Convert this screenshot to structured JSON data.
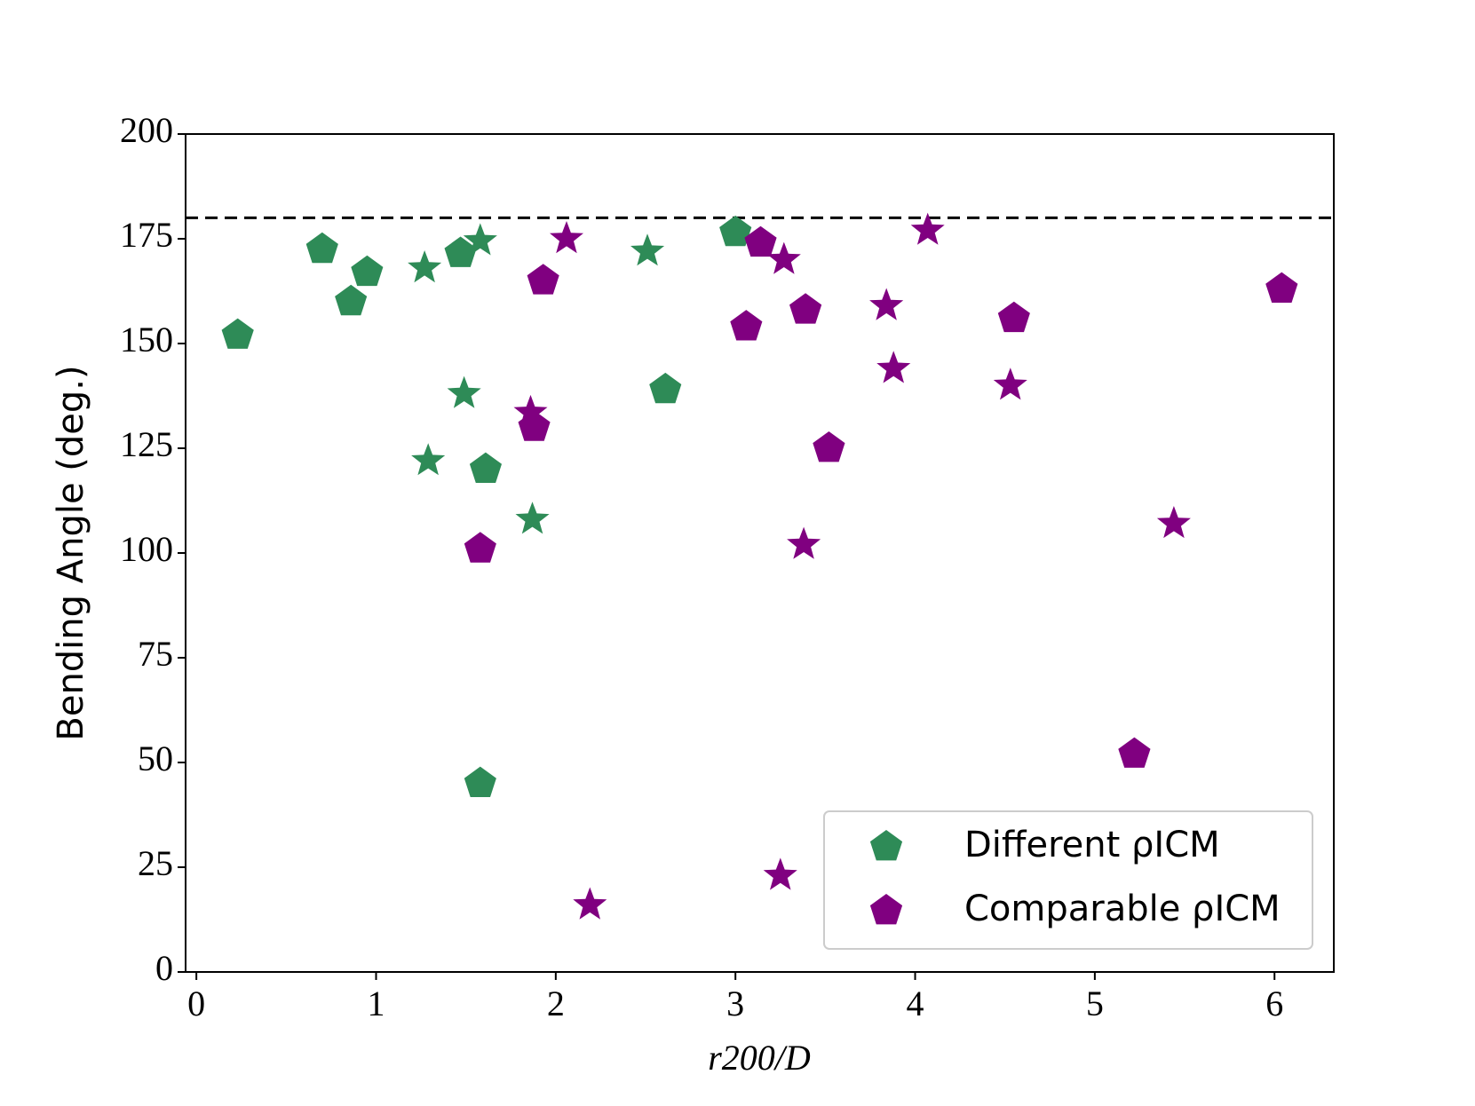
{
  "chart_data": {
    "type": "scatter",
    "x_label": "r200/D",
    "y_label": "Bending Angle (deg.)",
    "xlim": [
      -0.06,
      6.33
    ],
    "xticks": [
      0,
      1,
      2,
      3,
      4,
      5,
      6
    ],
    "ylim": [
      0,
      200
    ],
    "yticks": [
      0,
      25,
      50,
      75,
      100,
      125,
      150,
      175,
      200
    ],
    "reference_line": 180,
    "legend": "lower right",
    "series": [
      {
        "name": "Different ρICM",
        "color": "#2e8b57",
        "marker": "pentagon",
        "x": [
          0.23,
          0.7,
          0.95,
          0.86,
          1.47,
          1.61,
          1.58,
          2.61,
          3.0
        ],
        "values": [
          152,
          172.5,
          167,
          160,
          171.5,
          120,
          45,
          139,
          176.5
        ]
      },
      {
        "name": "Comparable ρICM",
        "color": "#800080",
        "marker": "pentagon",
        "x": [
          1.93,
          1.88,
          1.58,
          3.14,
          3.06,
          3.39,
          3.52,
          4.55,
          5.22,
          6.04
        ],
        "values": [
          165,
          130,
          101,
          174,
          154,
          158,
          125,
          156,
          52,
          163
        ]
      },
      {
        "color": "#2e8b57",
        "marker": "star",
        "x": [
          1.27,
          1.58,
          1.49,
          1.29,
          1.87,
          2.51
        ],
        "values": [
          168,
          174.5,
          138,
          122,
          108,
          172
        ]
      },
      {
        "color": "#800080",
        "marker": "star",
        "x": [
          2.06,
          1.86,
          2.19,
          3.27,
          3.38,
          3.25,
          3.84,
          3.88,
          4.07,
          4.53,
          5.44
        ],
        "values": [
          175,
          133.5,
          16,
          170,
          102,
          23,
          159,
          144,
          177,
          140,
          107
        ]
      }
    ]
  }
}
